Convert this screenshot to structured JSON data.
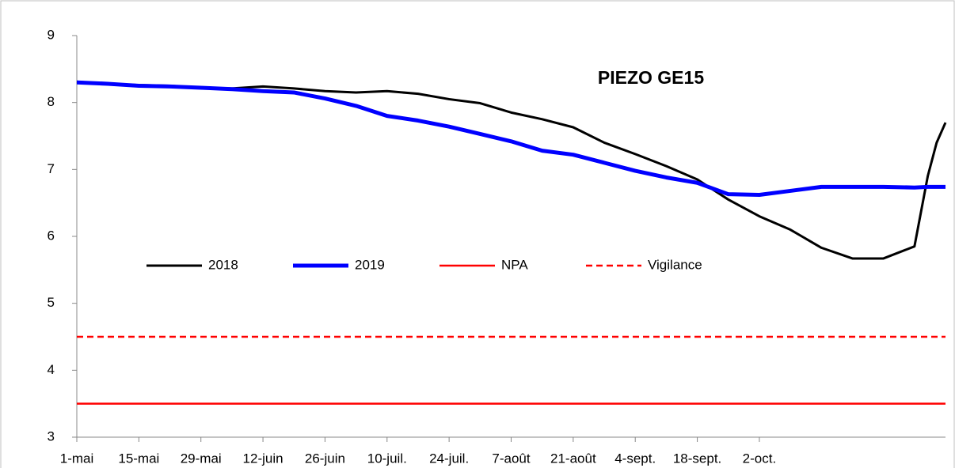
{
  "chart_data": {
    "type": "line",
    "title": "PIEZO GE15",
    "x": [
      0,
      7,
      14,
      21,
      28,
      35,
      42,
      49,
      56,
      63,
      70,
      77,
      84,
      91,
      98,
      105,
      112,
      119,
      126,
      133,
      140,
      147,
      154,
      161,
      168,
      175,
      182,
      189,
      192,
      194,
      196
    ],
    "xlim": [
      0,
      196
    ],
    "xticks": [
      {
        "value": 0,
        "label": "1-mai"
      },
      {
        "value": 14,
        "label": "15-mai"
      },
      {
        "value": 28,
        "label": "29-mai"
      },
      {
        "value": 42,
        "label": "12-juin"
      },
      {
        "value": 56,
        "label": "26-juin"
      },
      {
        "value": 70,
        "label": "10-juil."
      },
      {
        "value": 84,
        "label": "24-juil."
      },
      {
        "value": 98,
        "label": "7-août"
      },
      {
        "value": 112,
        "label": "21-août"
      },
      {
        "value": 126,
        "label": "4-sept."
      },
      {
        "value": 140,
        "label": "18-sept."
      },
      {
        "value": 154,
        "label": "2-oct."
      }
    ],
    "ylim": [
      3,
      9
    ],
    "yticks": [
      3,
      4,
      5,
      6,
      7,
      8,
      9
    ],
    "series": [
      {
        "name": "2018",
        "color": "#000000",
        "width": 3,
        "dash": false,
        "values": [
          8.31,
          8.28,
          8.26,
          8.25,
          8.22,
          8.21,
          8.24,
          8.21,
          8.17,
          8.15,
          8.17,
          8.13,
          8.05,
          7.99,
          7.85,
          7.75,
          7.63,
          7.4,
          7.23,
          7.05,
          6.85,
          6.55,
          6.3,
          6.1,
          5.83,
          5.67,
          5.67,
          5.85,
          6.9,
          7.4,
          7.7
        ]
      },
      {
        "name": "2019",
        "color": "#0000ff",
        "width": 5,
        "dash": false,
        "values": [
          8.3,
          8.28,
          8.25,
          8.24,
          8.22,
          8.2,
          8.17,
          8.15,
          8.06,
          7.95,
          7.8,
          7.73,
          7.64,
          7.53,
          7.42,
          7.28,
          7.22,
          7.1,
          6.98,
          6.88,
          6.8,
          6.63,
          6.62,
          6.68,
          6.74,
          6.74,
          6.74,
          6.73,
          6.74,
          6.74,
          6.74
        ]
      },
      {
        "name": "NPA",
        "color": "#ff0000",
        "width": 2.5,
        "dash": false,
        "values": [
          3.5,
          3.5,
          3.5,
          3.5,
          3.5,
          3.5,
          3.5,
          3.5,
          3.5,
          3.5,
          3.5,
          3.5,
          3.5,
          3.5,
          3.5,
          3.5,
          3.5,
          3.5,
          3.5,
          3.5,
          3.5,
          3.5,
          3.5,
          3.5,
          3.5,
          3.5,
          3.5,
          3.5,
          3.5,
          3.5,
          3.5
        ]
      },
      {
        "name": "Vigilance",
        "color": "#ff0000",
        "width": 2.5,
        "dash": true,
        "values": [
          4.5,
          4.5,
          4.5,
          4.5,
          4.5,
          4.5,
          4.5,
          4.5,
          4.5,
          4.5,
          4.5,
          4.5,
          4.5,
          4.5,
          4.5,
          4.5,
          4.5,
          4.5,
          4.5,
          4.5,
          4.5,
          4.5,
          4.5,
          4.5,
          4.5,
          4.5,
          4.5,
          4.5,
          4.5,
          4.5,
          4.5
        ]
      }
    ]
  }
}
